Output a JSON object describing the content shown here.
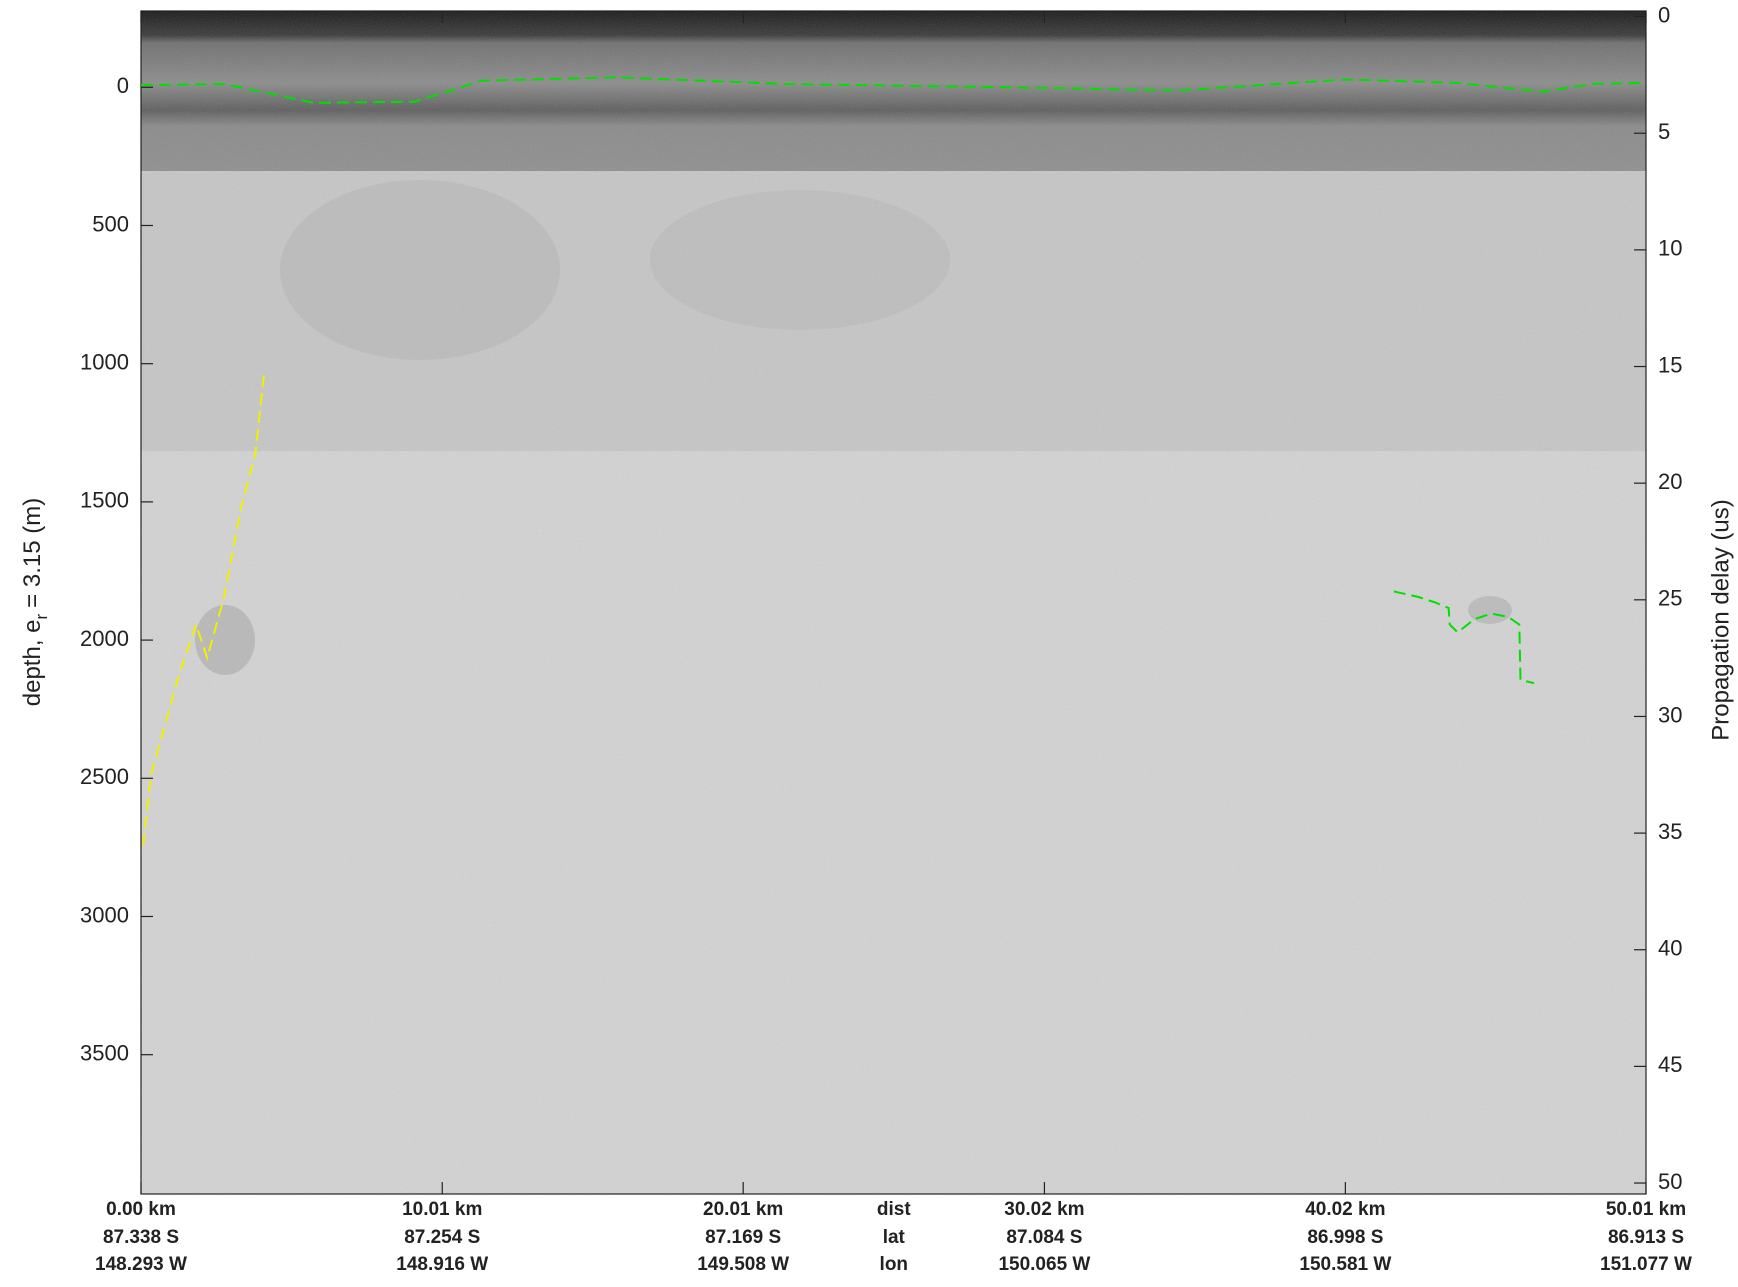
{
  "chart_data": {
    "type": "echogram",
    "ylabel": "depth, e",
    "ylabel_sub": "r",
    "ylabel_end": "= 3.15 (m)",
    "y2label": "Propagation delay (us)",
    "xlim": [
      0,
      50.01
    ],
    "xticks": [
      {
        "value": 0,
        "label": "0.00 km"
      },
      {
        "value": 10.01,
        "label": "10.01 km"
      },
      {
        "value": 20.01,
        "label": "20.01 km"
      },
      {
        "value": 30.02,
        "label": "30.02 km"
      },
      {
        "value": 40.02,
        "label": "40.02 km"
      },
      {
        "value": 50.01,
        "label": "50.01 km"
      }
    ],
    "lat_labels": [
      "87.338 S",
      "87.254 S",
      "87.169 S",
      "87.084 S",
      "86.998 S",
      "86.913 S"
    ],
    "lon_labels": [
      "148.293 W",
      "148.916 W",
      "149.508 W",
      "150.065 W",
      "150.581 W",
      "151.077 W"
    ],
    "row_labels": [
      "dist",
      "lat",
      "lon"
    ],
    "ylim": [
      -276,
      4004
    ],
    "yticks": [
      0,
      500,
      1000,
      1500,
      2000,
      2500,
      3000,
      3500
    ],
    "y2lim": [
      -0.24,
      50.47
    ],
    "y2ticks": [
      0,
      5,
      10,
      15,
      20,
      25,
      30,
      35,
      40,
      45,
      50
    ],
    "series": [
      {
        "color": "#00e000",
        "style": "dashed",
        "x": [
          0,
          2.76,
          5.74,
          9.09,
          11.33,
          15.8,
          21.39,
          28.85,
          34.44,
          40.03,
          43.75,
          46.55,
          48.23,
          50.01
        ],
        "values": [
          -8,
          -12,
          56,
          52,
          -24,
          -36,
          -12,
          0,
          12,
          -28,
          -16,
          16,
          -12,
          -16
        ]
      },
      {
        "color": "#f0f000",
        "style": "dashed",
        "x": [
          0.07,
          0.34,
          1.27,
          1.83,
          2.2,
          2.76,
          3.32,
          3.8,
          4.1
        ],
        "values": [
          2744,
          2484,
          2124,
          1944,
          2064,
          1844,
          1524,
          1324,
          1024
        ]
      },
      {
        "color": "#00e000",
        "style": "dashed",
        "x": [
          41.63,
          42.45,
          43.01,
          43.45,
          43.49,
          43.75,
          44.31,
          44.87,
          45.43,
          45.8,
          45.84,
          46.29
        ],
        "values": [
          1824,
          1844,
          1864,
          1884,
          1944,
          1972,
          1924,
          1904,
          1916,
          1944,
          2144,
          2156
        ]
      }
    ]
  }
}
